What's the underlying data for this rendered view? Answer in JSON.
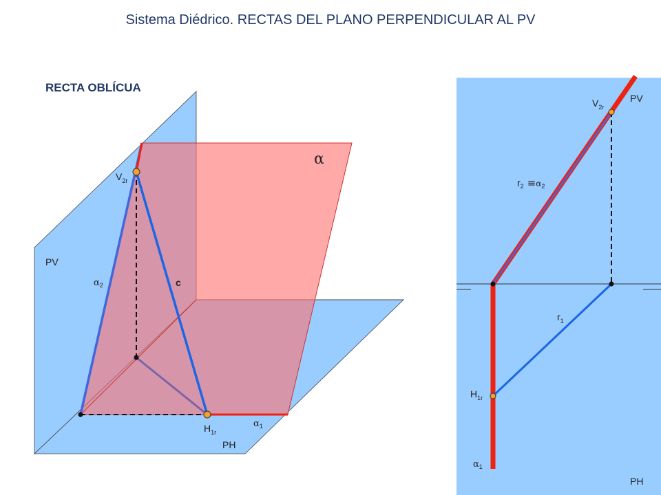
{
  "title": "Sistema Diédrico. RECTAS DEL PLANO  PERPENDICULAR AL PV",
  "subtitle": "RECTA OBLÍCUA",
  "left_view": {
    "plane_symbol": "α",
    "pv_label": "PV",
    "ph_label": "PH",
    "c_label": "c",
    "v2r": {
      "main": "V",
      "sub": "2r"
    },
    "h1r": {
      "main": "H",
      "sub": "1r"
    },
    "alpha2": {
      "main": "α",
      "sub": "2"
    },
    "alpha1": {
      "main": "α",
      "sub": "1"
    }
  },
  "right_view": {
    "pv_label": "PV",
    "ph_label": "PH",
    "v2r": {
      "main": "V",
      "sub": "2r"
    },
    "h1r": {
      "main": "H",
      "sub": "1r"
    },
    "r2_eq": {
      "r": "r",
      "r_sub": "2",
      "eq": "≡",
      "a": "α",
      "a_sub": "2"
    },
    "r1": {
      "main": "r",
      "sub": "1"
    },
    "alpha1": {
      "main": "α",
      "sub": "1"
    }
  },
  "colors": {
    "plane_blue": "#99ccff",
    "plane_red": "#ff6f6f",
    "line_blue": "#1a66e6",
    "trace_red": "#ee2211",
    "point_orange": "#f5a02a"
  }
}
